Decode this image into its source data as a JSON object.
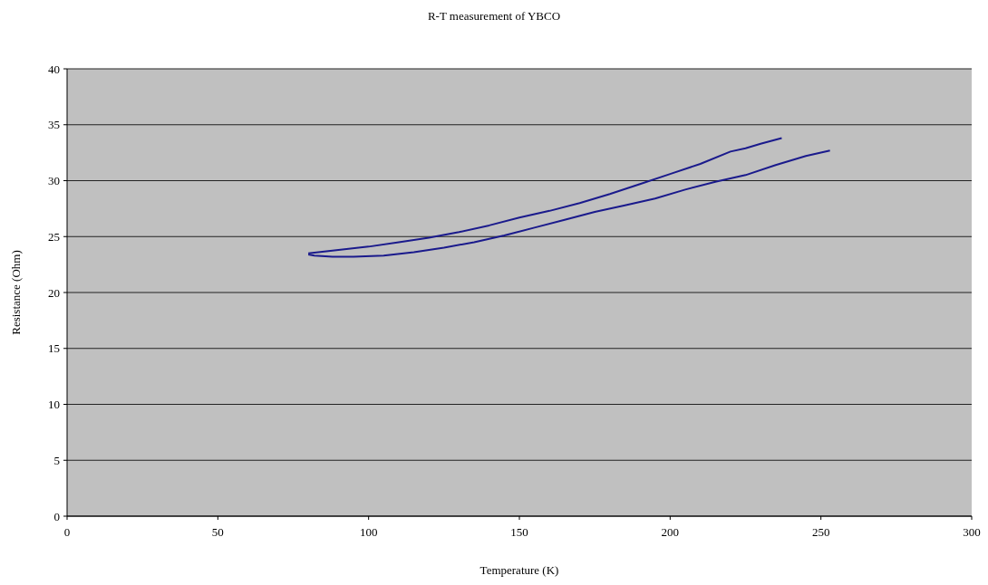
{
  "chart_data": {
    "type": "line",
    "title": "R-T measurement of YBCO",
    "xlabel": "Temperature (K)",
    "ylabel": "Resistance (Ohm)",
    "series": [
      {
        "color": "#1a1a8c",
        "x": [
          253,
          245,
          235,
          225,
          215,
          205,
          195,
          185,
          175,
          165,
          155,
          145,
          135,
          125,
          115,
          105,
          95,
          88,
          82,
          80
        ],
        "values": [
          32.7,
          32.2,
          31.4,
          30.5,
          29.9,
          29.2,
          28.4,
          27.8,
          27.2,
          26.5,
          25.8,
          25.1,
          24.5,
          24.0,
          23.6,
          23.3,
          23.2,
          23.2,
          23.3,
          23.4
        ]
      },
      {
        "color": "#1a1a8c",
        "x": [
          80,
          90,
          100,
          110,
          120,
          130,
          140,
          150,
          160,
          170,
          180,
          190,
          200,
          210,
          220,
          225,
          230,
          237
        ],
        "values": [
          23.5,
          23.8,
          24.1,
          24.5,
          24.9,
          25.4,
          26.0,
          26.7,
          27.3,
          28.0,
          28.8,
          29.7,
          30.6,
          31.5,
          32.6,
          32.9,
          33.3,
          33.8
        ]
      }
    ],
    "xlim": [
      0,
      300
    ],
    "xticks": [
      0,
      50,
      100,
      150,
      200,
      250,
      300
    ],
    "ylim": [
      0,
      40
    ],
    "yticks": [
      0,
      5,
      10,
      15,
      20,
      25,
      30,
      35,
      40
    ],
    "grid": "y",
    "marker": "none",
    "line_style": "solid"
  }
}
